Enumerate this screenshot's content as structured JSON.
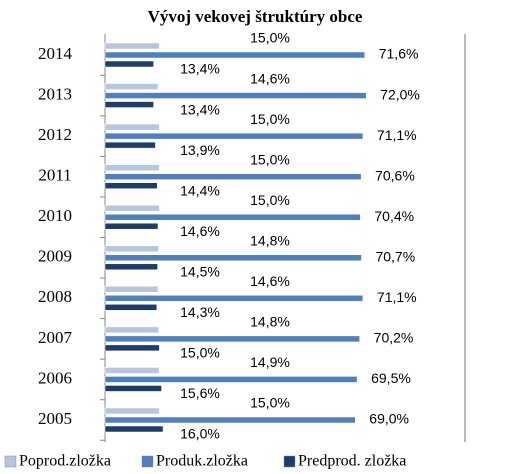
{
  "chart_data": {
    "type": "hbar",
    "title": "Vývoj vekovej štruktúry obce",
    "categories": [
      "2005",
      "2006",
      "2007",
      "2008",
      "2009",
      "2010",
      "2011",
      "2012",
      "2013",
      "2014"
    ],
    "xlim": [
      0,
      72.5
    ],
    "series": [
      {
        "name": "Poprod.zložka",
        "color": "#b8c6dc",
        "values": [
          15.0,
          14.9,
          14.8,
          14.6,
          14.8,
          15.0,
          15.0,
          15.0,
          14.6,
          15.0
        ],
        "value_labels": [
          "15,0%",
          "14,9%",
          "14,8%",
          "14,6%",
          "14,8%",
          "15,0%",
          "15,0%",
          "15,0%",
          "14,6%",
          "15,0%"
        ]
      },
      {
        "name": "Produk.zložka",
        "color": "#4f7fbd",
        "values": [
          69.0,
          69.5,
          70.2,
          71.1,
          70.7,
          70.4,
          70.6,
          71.1,
          72.0,
          71.6
        ],
        "value_labels": [
          "69,0%",
          "69,5%",
          "70,2%",
          "71,1%",
          "70,7%",
          "70,4%",
          "70,6%",
          "71,1%",
          "72,0%",
          "71,6%"
        ]
      },
      {
        "name": "Predprod. zložka",
        "color": "#1f3d6b",
        "values": [
          16.0,
          15.6,
          15.0,
          14.3,
          14.5,
          14.6,
          14.4,
          13.9,
          13.4,
          13.4
        ],
        "value_labels": [
          "16,0%",
          "15,6%",
          "15,0%",
          "14,3%",
          "14,5%",
          "14,6%",
          "14,4%",
          "13,9%",
          "13,4%",
          "13,4%"
        ]
      }
    ]
  }
}
